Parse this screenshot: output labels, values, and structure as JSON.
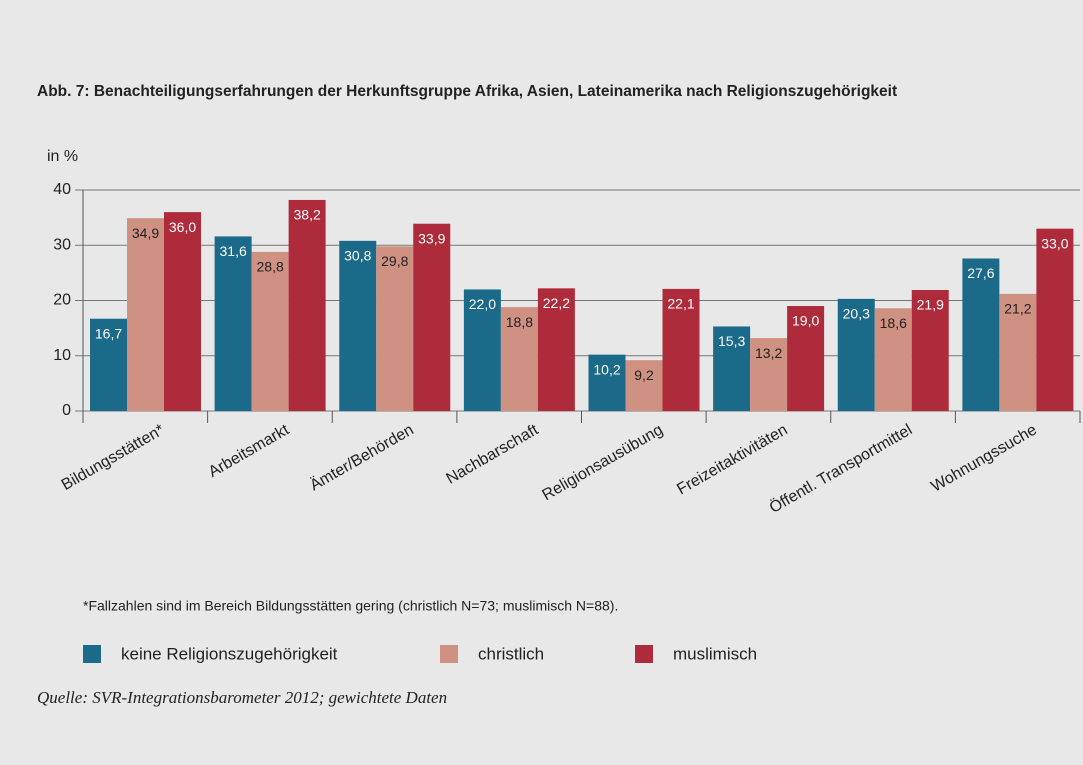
{
  "chart_data": {
    "type": "bar",
    "title": "Abb. 7: Benachteiligungserfahrungen der Herkunftsgruppe Afrika, Asien, Lateinamerika nach Religionszugehörigkeit",
    "y_label": "in %",
    "categories": [
      "Bildungsstätten*",
      "Arbeitsmarkt",
      "Ämter/Behörden",
      "Nachbarschaft",
      "Religionsausübung",
      "Freizeitaktivitäten",
      "Öffentl. Transportmittel",
      "Wohnungssuche"
    ],
    "series": [
      {
        "name": "keine Religionszugehörigkeit",
        "color": "#1b6a89",
        "values": [
          16.7,
          31.6,
          30.8,
          22.0,
          10.2,
          15.3,
          20.3,
          27.6
        ],
        "value_labels": [
          "16,7",
          "31,6",
          "30,8",
          "22,0",
          "10,2",
          "15,3",
          "20,3",
          "27,6"
        ]
      },
      {
        "name": "christlich",
        "color": "#cf9182",
        "values": [
          34.9,
          28.8,
          29.8,
          18.8,
          9.2,
          13.2,
          18.6,
          21.2
        ],
        "value_labels": [
          "34,9",
          "28,8",
          "29,8",
          "18,8",
          "9,2",
          "13,2",
          "18,6",
          "21,2"
        ]
      },
      {
        "name": "muslimisch",
        "color": "#ae2b3b",
        "values": [
          36.0,
          38.2,
          33.9,
          22.2,
          22.1,
          19.0,
          21.9,
          33.0
        ],
        "value_labels": [
          "36,0",
          "38,2",
          "33,9",
          "22,2",
          "22,1",
          "19,0",
          "21,9",
          "33,0"
        ]
      }
    ],
    "ylim": [
      0,
      40
    ],
    "yticks": [
      0,
      10,
      20,
      30,
      40
    ],
    "grid": true,
    "footnote": "*Fallzahlen sind im Bereich Bildungsstätten gering (christlich N=73; muslimisch N=88).",
    "source": "Quelle: SVR-Integrationsbarometer 2012; gewichtete Daten"
  }
}
